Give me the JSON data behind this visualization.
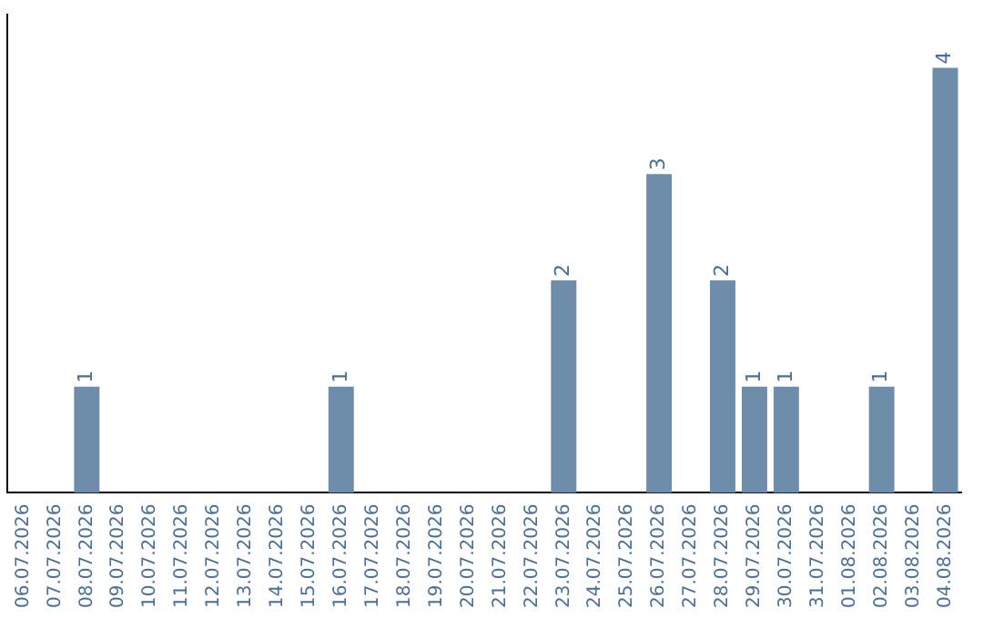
{
  "chart_data": {
    "type": "bar",
    "categories": [
      "06.07.2026",
      "07.07.2026",
      "08.07.2026",
      "09.07.2026",
      "10.07.2026",
      "11.07.2026",
      "12.07.2026",
      "13.07.2026",
      "14.07.2026",
      "15.07.2026",
      "16.07.2026",
      "17.07.2026",
      "18.07.2026",
      "19.07.2026",
      "20.07.2026",
      "21.07.2026",
      "22.07.2026",
      "23.07.2026",
      "24.07.2026",
      "25.07.2026",
      "26.07.2026",
      "27.07.2026",
      "28.07.2026",
      "29.07.2026",
      "30.07.2026",
      "31.07.2026",
      "01.08.2026",
      "02.08.2026",
      "03.08.2026",
      "04.08.2026"
    ],
    "values": [
      0,
      0,
      1,
      0,
      0,
      0,
      0,
      0,
      0,
      0,
      1,
      0,
      0,
      0,
      0,
      0,
      0,
      2,
      0,
      0,
      3,
      0,
      2,
      1,
      1,
      0,
      0,
      1,
      0,
      4
    ],
    "value_labels": [
      null,
      null,
      "1",
      null,
      null,
      null,
      null,
      null,
      null,
      null,
      "1",
      null,
      null,
      null,
      null,
      null,
      null,
      "2",
      null,
      null,
      "3",
      null,
      "2",
      "1",
      "1",
      null,
      null,
      "1",
      null,
      "4"
    ],
    "color": "#6d8dab",
    "grid": false,
    "legend": false,
    "tick_labels": "x"
  }
}
